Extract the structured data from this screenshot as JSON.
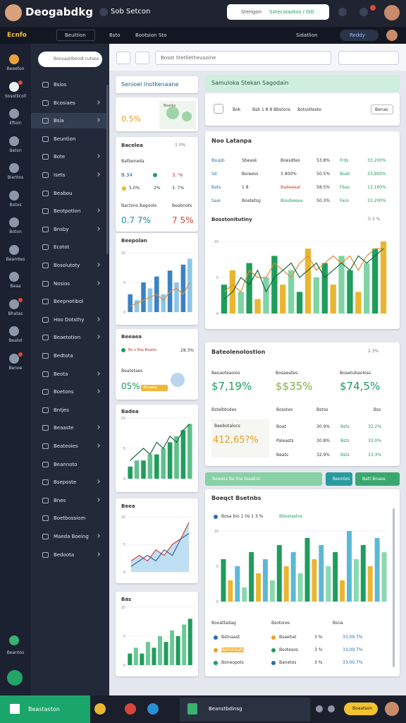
{
  "header": {
    "title": "Deogabdkg",
    "subtitle": "Sob Setcon",
    "search_placeholder": "Stengon",
    "search_action": "Sotecolaotos / ibtt"
  },
  "nav": {
    "brand": "Ecnfo",
    "menu": "Beuttion",
    "items": [
      "Bsto",
      "Bootsion",
      "Sto"
    ],
    "right": "Sidatlion",
    "status": "Reddy"
  },
  "rail": [
    "Beaeton",
    "Sosotlicoll",
    "Eftoin",
    "Baton",
    "Bientos",
    "Botos",
    "Boton",
    "Beamtes",
    "Beaa",
    "Bhatas",
    "Bealot",
    "Benoe"
  ],
  "rail_bottom": "Beantos",
  "sidebar": {
    "search": "Bonsaatibondi cutoos",
    "items": [
      "Bsios",
      "Bcosiaes",
      "Bsia",
      "Beuntion",
      "Bote",
      "Isets",
      "Beabou",
      "Beotpotion",
      "Bnsby",
      "Ecotot",
      "Bosolutoty",
      "Nosios",
      "Beepnotibol",
      "Hoo Dotsthy",
      "Beaetotion",
      "Bedtota",
      "Beota",
      "Boetons",
      "Bntjes",
      "Beaaste",
      "Beateoies",
      "Beannoto",
      "Bseposte",
      "Bnes",
      "Boetbossiom",
      "Maeda Boeing",
      "Bedoota"
    ]
  },
  "toolbar": {
    "search": "Bosst Stetlletheusoine"
  },
  "cards": {
    "intro": {
      "title": "Senioel Inotkenaane",
      "value": "0.5%",
      "map_label": "Beatbs"
    },
    "stats": {
      "title": "Bacelea",
      "badge": "1 0%",
      "sub": "Batbeneda",
      "r1": [
        "B.34",
        "3. %"
      ],
      "r2": [
        "5.0%",
        "2%",
        "3. 7%"
      ],
      "l1": "Bactons Bagoole",
      "l2": "Beabnots",
      "v1": "0.7 7%",
      "v2": "7 5%"
    },
    "chartA": {
      "title": "Beepolan"
    },
    "geo": {
      "title": "Beeaea",
      "legend": "Bo o Bsp Beatte",
      "pct": "28.3%",
      "sub": "Beatetaes",
      "value": "05%",
      "badge": "Bosaba"
    },
    "chartB": {
      "title": "Badea"
    },
    "chartC": {
      "title": "Beea"
    },
    "chartD": {
      "title": "Bas"
    },
    "banner": {
      "title": "Samuloka Stekan Sagodain",
      "c1": "Bok",
      "c2": "Bsb 1 8 8 Bbstons",
      "c3": "Botsolteste",
      "button": "Benas"
    },
    "table": {
      "title": "Noo Latanpa",
      "rows": [
        [
          "Bsupb",
          "Sbeask",
          "Boesdtes",
          "53.8%",
          "Frds",
          "33,200%"
        ],
        [
          "Sd",
          "Bsreess",
          "3 800%",
          "50.5%",
          "Bsah",
          "33,900%"
        ],
        [
          "Bats",
          "1 8",
          "Badeeeal",
          "58.5%",
          "Fbas",
          "13,160%"
        ],
        [
          "Saai",
          "Boatetsg",
          "Bisubeeaa",
          "50.3%",
          "Fass",
          "33,200%"
        ]
      ],
      "chart_title": "Bosstonitutiny",
      "chart_badge": "0.3 %"
    },
    "kpi": {
      "title": "Bateolenolostion",
      "badge": "2.3%",
      "labels": [
        "Beoaoteaoios",
        "Bosaeates",
        "Boaetubaoloss"
      ],
      "values": [
        "$7,19%",
        "$$35%",
        "$74,5%"
      ],
      "head": [
        "Bstelbtodes",
        "Bosstes",
        "Bstos",
        "Bss"
      ],
      "box_label": "Beebotalocs",
      "box_value": "412,65?%",
      "rows": [
        [
          "Boat",
          "30.9%",
          "Bsts",
          "32.2%"
        ],
        [
          "Paleasts",
          "30.8%",
          "Bsts",
          "33.0%"
        ],
        [
          "Beats",
          "32.9%",
          "Bsts",
          "33.3%"
        ]
      ]
    },
    "actions": [
      "Beaeos Be the teeaton",
      "Beontos",
      "Batt Bnaos"
    ],
    "bottom": {
      "title": "Boeqct Bsetnbs",
      "legend1": "Bosa bio 1 0s 1 3.%",
      "legend2": "Bbsatsetos",
      "head": [
        "Booattadag",
        "Bsotores",
        "Bsna"
      ],
      "rows": [
        [
          "Bstnaast",
          "Bsaehat",
          "3 %",
          "33,09.7%"
        ],
        [
          "Bemarsats",
          "Bsotesos",
          "3 %",
          "33,09.7%"
        ],
        [
          "Boneopots",
          "Banetos",
          "3 %",
          "33,00.7%"
        ]
      ]
    }
  },
  "charts": {
    "a": {
      "ylim": [
        0,
        10
      ],
      "yticks": [
        0,
        5,
        10
      ],
      "colors": [
        "#3b82c4",
        "#8ec5e6"
      ],
      "bars": [
        3,
        2,
        5,
        4,
        6,
        3,
        7,
        5,
        8,
        9
      ],
      "lines": [
        {
          "color": "#e58a2b",
          "values": [
            1,
            1.5,
            2,
            2.5,
            3,
            2,
            3.5,
            4,
            3,
            5
          ]
        }
      ]
    },
    "b": {
      "ylim": [
        0,
        10
      ],
      "yticks": [
        0,
        5,
        10
      ],
      "colors": [
        "#1f9d5c",
        "#5fc08b"
      ],
      "bars": [
        2,
        3,
        3,
        4,
        4,
        5,
        6,
        7,
        8,
        9
      ],
      "lines": [
        {
          "color": "#17683f",
          "values": [
            3,
            4,
            5,
            4,
            6,
            5,
            7,
            6,
            8,
            9
          ]
        }
      ]
    },
    "c": {
      "ylim": [
        0,
        10
      ],
      "yticks": [
        0,
        5,
        10
      ],
      "area": "#bfe0f2",
      "bars": [],
      "colors": [],
      "lines": [
        {
          "color": "#d9453a",
          "values": [
            2,
            3,
            2,
            4,
            3,
            5,
            6,
            9
          ]
        },
        {
          "color": "#3a5fa8",
          "values": [
            1,
            2,
            3,
            2,
            4,
            3,
            6,
            7
          ]
        }
      ]
    },
    "d": {
      "ylim": [
        0,
        10
      ],
      "yticks": [
        0,
        5,
        10
      ],
      "colors": [
        "#1f9d5c",
        "#6cc895"
      ],
      "bars": [
        2,
        3,
        2,
        4,
        3,
        5,
        4,
        6,
        5,
        7,
        8
      ],
      "lines": []
    },
    "e": {
      "ylim": [
        0,
        10
      ],
      "yticks": [
        0,
        5,
        10
      ],
      "colors": [
        "#1f9d5c",
        "#e8b630",
        "#7fd4a4"
      ],
      "bars": [
        4,
        6,
        3,
        7,
        2,
        5,
        8,
        4,
        6,
        3,
        9,
        5,
        7,
        4,
        8,
        6,
        3,
        7,
        9,
        10
      ],
      "lines": [
        {
          "color": "#e58a2b",
          "values": [
            3,
            4,
            3,
            6,
            5,
            5,
            7,
            6,
            5,
            7,
            8,
            6,
            7,
            8,
            7,
            8,
            6,
            8,
            9,
            9
          ]
        },
        {
          "color": "#17683f",
          "values": [
            2,
            3,
            5,
            4,
            6,
            3,
            5,
            6,
            7,
            5,
            6,
            7,
            5,
            6,
            7,
            6,
            8,
            7,
            8,
            9
          ]
        }
      ]
    },
    "f": {
      "ylim": [
        0,
        10
      ],
      "yticks": [
        0,
        5,
        10
      ],
      "colors": [
        "#1f9d5c",
        "#e8b630",
        "#5bb8d6",
        "#8ad8b0"
      ],
      "bars": [
        6,
        3,
        5,
        2,
        7,
        4,
        6,
        3,
        8,
        5,
        7,
        4,
        9,
        6,
        8,
        5,
        7,
        3,
        10,
        6,
        8,
        5,
        9,
        7
      ],
      "lines": []
    }
  },
  "taskbar": {
    "start": "Beastaston",
    "app": "Beanstbdinsg",
    "pill": "Boaatson"
  }
}
